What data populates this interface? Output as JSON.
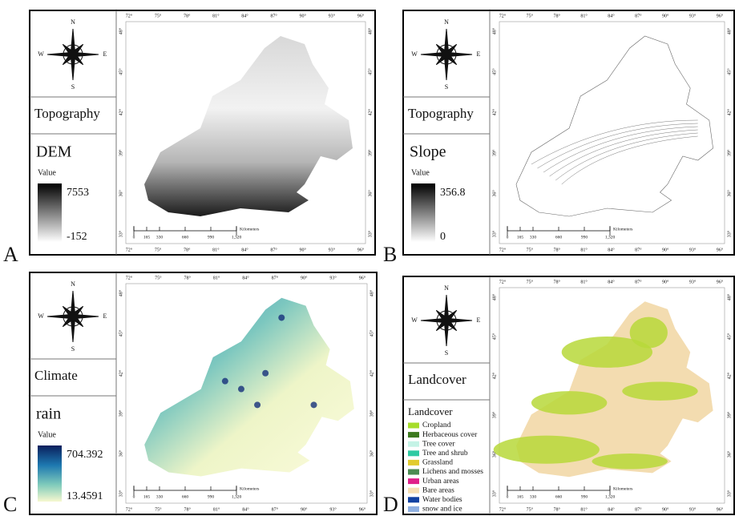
{
  "compass": {
    "n": "N",
    "s": "S",
    "w": "W",
    "e": "E"
  },
  "graticule": {
    "lon": [
      "72°",
      "75°",
      "78°",
      "81°",
      "84°",
      "87°",
      "90°",
      "93°",
      "96°"
    ],
    "lat": [
      "48°",
      "45°",
      "42°",
      "39°",
      "36°",
      "33°"
    ]
  },
  "scale_bar": {
    "labels": [
      "0",
      "165",
      "330",
      "660",
      "990",
      "1,320"
    ],
    "unit": "Kilometers"
  },
  "panels": [
    {
      "letter": "A",
      "category": "Topography",
      "layer": "DEM",
      "legend_title": "Value",
      "max": 7553,
      "min": -152
    },
    {
      "letter": "B",
      "category": "Topography",
      "layer": "Slope",
      "legend_title": "Value",
      "max": 356.8,
      "min": 0
    },
    {
      "letter": "C",
      "category": "Climate",
      "layer": "rain",
      "legend_title": "Value",
      "max": 704.392,
      "min": 13.4591
    },
    {
      "letter": "D",
      "category": "Landcover",
      "legend_title": "Landcover",
      "classes": [
        "Cropland",
        "Herbaceous cover",
        "Tree cover",
        "Tree and shrub",
        "Grassland",
        "Lichens and mosses",
        "Urban areas",
        "Bare areas",
        "Water bodies",
        "snow and ice"
      ]
    }
  ]
}
